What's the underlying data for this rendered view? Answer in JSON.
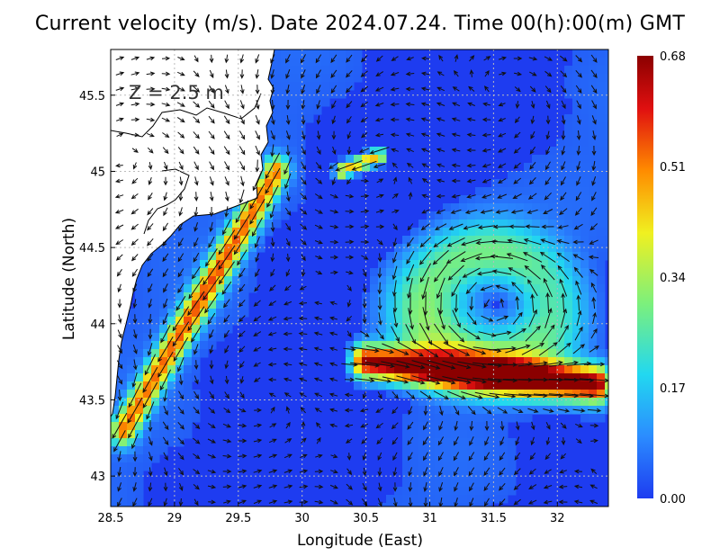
{
  "chart_data": {
    "type": "heatmap",
    "title": "Current velocity (m/s). Date 2024.07.24. Time 00(h):00(m) GMT",
    "annotation": "Z = 2.5 m",
    "xlabel": "Longitude (East)",
    "ylabel": "Latitude (North)",
    "xlim": [
      28.5,
      32.4
    ],
    "ylim": [
      42.8,
      45.8
    ],
    "x_ticks": [
      "28.5",
      "29",
      "29.5",
      "30",
      "30.5",
      "31",
      "31.5",
      "32"
    ],
    "y_ticks": [
      "43",
      "43.5",
      "44",
      "44.5",
      "45",
      "45.5"
    ],
    "grid": true,
    "colorbar": {
      "ticks": [
        "0.00",
        "0.17",
        "0.34",
        "0.51",
        "0.68"
      ],
      "range": [
        0.0,
        0.68
      ],
      "colors": [
        "#1e3cf0",
        "#2b8cff",
        "#22d8f0",
        "#7cf07c",
        "#f0f020",
        "#ff8c00",
        "#e01010",
        "#8b0000"
      ]
    },
    "features": [
      {
        "name": "eddy",
        "center": [
          31.45,
          44.1
        ],
        "radius_lon": 0.9,
        "max_speed": 0.3
      },
      {
        "name": "jet",
        "from": [
          30.5,
          43.75
        ],
        "to": [
          32.3,
          43.6
        ],
        "max_speed": 0.68
      },
      {
        "name": "coastal_current",
        "from": [
          29.8,
          45.0
        ],
        "to": [
          28.6,
          43.3
        ],
        "max_speed": 0.5
      },
      {
        "name": "north_jet",
        "from": [
          30.6,
          45.1
        ],
        "to": [
          30.3,
          45.0
        ],
        "max_speed": 0.45
      }
    ],
    "land_color": "#ffffff",
    "sea_background": "#1e3cf0"
  }
}
